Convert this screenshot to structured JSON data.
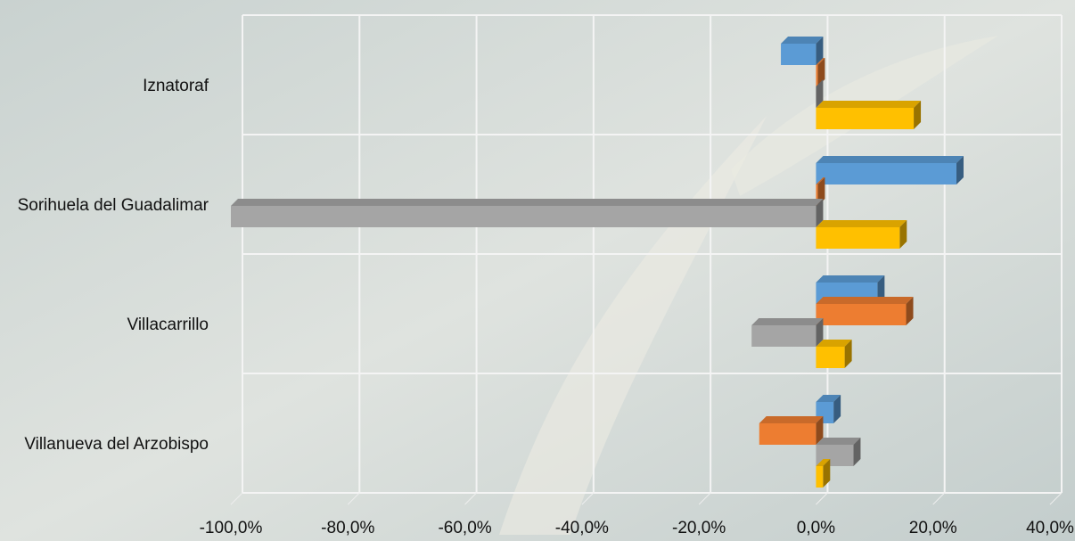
{
  "chart_data": {
    "type": "bar3d_horizontal",
    "categories": [
      "Iznatoraf",
      "Sorihuela del Guadalimar",
      "Villacarrillo",
      "Villanueva del Arzobispo"
    ],
    "series": [
      {
        "color": "#5b9bd5",
        "values": [
          -6,
          24,
          10.5,
          3
        ]
      },
      {
        "color": "#ed7d31",
        "values": [
          0.3,
          0.3,
          15.4,
          -9.7
        ]
      },
      {
        "color": "#a5a5a5",
        "values": [
          0,
          -100,
          -11,
          6.4
        ]
      },
      {
        "color": "#ffc000",
        "values": [
          16.7,
          14.3,
          4.9,
          1.2
        ]
      }
    ],
    "xlim": [
      -100,
      40
    ],
    "xticks": [
      {
        "value": -100,
        "label": "-100,0%"
      },
      {
        "value": -80,
        "label": "-80,0%"
      },
      {
        "value": -60,
        "label": "-60,0%"
      },
      {
        "value": -40,
        "label": "-40,0%"
      },
      {
        "value": -20,
        "label": "-20,0%"
      },
      {
        "value": 0,
        "label": "0,0%"
      },
      {
        "value": 20,
        "label": "20,0%"
      },
      {
        "value": 40,
        "label": "40,0%"
      }
    ],
    "grid": true
  }
}
